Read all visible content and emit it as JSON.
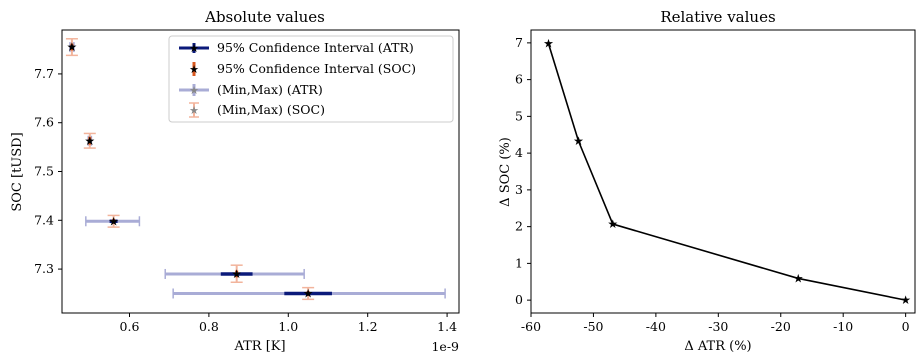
{
  "colors": {
    "atr_ci": "#0b1a7a",
    "soc_ci": "#d9581f",
    "atr_minmax": "#a9acd6",
    "soc_minmax": "#f2b49c",
    "line": "#000000"
  },
  "chart_data": [
    {
      "type": "scatter",
      "title": "Absolute values",
      "xlabel": "ATR [K]",
      "ylabel": "SOC [tUSD]",
      "x_offset_label": "1e-9",
      "xlim": [
        0.43,
        1.43
      ],
      "ylim": [
        7.21,
        7.79
      ],
      "xticks": [
        0.6,
        0.8,
        1.0,
        1.2,
        1.4
      ],
      "xtick_labels": [
        "0.6",
        "0.8",
        "1.0",
        "1.2",
        "1.4"
      ],
      "yticks": [
        7.3,
        7.4,
        7.5,
        7.6,
        7.7
      ],
      "ytick_labels": [
        "7.3",
        "7.4",
        "7.5",
        "7.6",
        "7.7"
      ],
      "legend_position": "top-right",
      "legend": [
        "95% Confidence Interval (ATR)",
        "95% Confidence Interval (SOC)",
        "(Min,Max) (ATR)",
        "(Min,Max) (SOC)"
      ],
      "points": [
        {
          "x": 0.455,
          "y": 7.755,
          "x_ci": [
            0.45,
            0.46
          ],
          "y_ci": [
            7.748,
            7.762
          ],
          "x_minmax": [
            0.45,
            0.46
          ],
          "y_minmax": [
            7.738,
            7.772
          ]
        },
        {
          "x": 0.5,
          "y": 7.563,
          "x_ci": [
            0.496,
            0.504
          ],
          "y_ci": [
            7.555,
            7.571
          ],
          "x_minmax": [
            0.496,
            0.504
          ],
          "y_minmax": [
            7.548,
            7.578
          ]
        },
        {
          "x": 0.56,
          "y": 7.398,
          "x_ci": [
            0.55,
            0.57
          ],
          "y_ci": [
            7.393,
            7.403
          ],
          "x_minmax": [
            0.49,
            0.625
          ],
          "y_minmax": [
            7.386,
            7.41
          ]
        },
        {
          "x": 0.87,
          "y": 7.29,
          "x_ci": [
            0.83,
            0.91
          ],
          "y_ci": [
            7.283,
            7.297
          ],
          "x_minmax": [
            0.69,
            1.04
          ],
          "y_minmax": [
            7.273,
            7.308
          ]
        },
        {
          "x": 1.05,
          "y": 7.25,
          "x_ci": [
            0.99,
            1.11
          ],
          "y_ci": [
            7.245,
            7.255
          ],
          "x_minmax": [
            0.71,
            1.395
          ],
          "y_minmax": [
            7.238,
            7.262
          ]
        }
      ]
    },
    {
      "type": "line",
      "title": "Relative values",
      "xlabel": "Δ ATR (%)",
      "ylabel": "Δ SOC (%)",
      "xlim": [
        -60,
        1.5
      ],
      "ylim": [
        -0.35,
        7.35
      ],
      "xticks": [
        -60,
        -50,
        -40,
        -30,
        -20,
        -10,
        0
      ],
      "xtick_labels": [
        "-60",
        "-50",
        "-40",
        "-30",
        "-20",
        "-10",
        "0"
      ],
      "yticks": [
        0,
        1,
        2,
        3,
        4,
        5,
        6,
        7
      ],
      "ytick_labels": [
        "0",
        "1",
        "2",
        "3",
        "4",
        "5",
        "6",
        "7"
      ],
      "x": [
        -57.2,
        -52.4,
        -46.9,
        -17.2,
        0
      ],
      "y": [
        6.98,
        4.33,
        2.07,
        0.59,
        0
      ]
    }
  ]
}
